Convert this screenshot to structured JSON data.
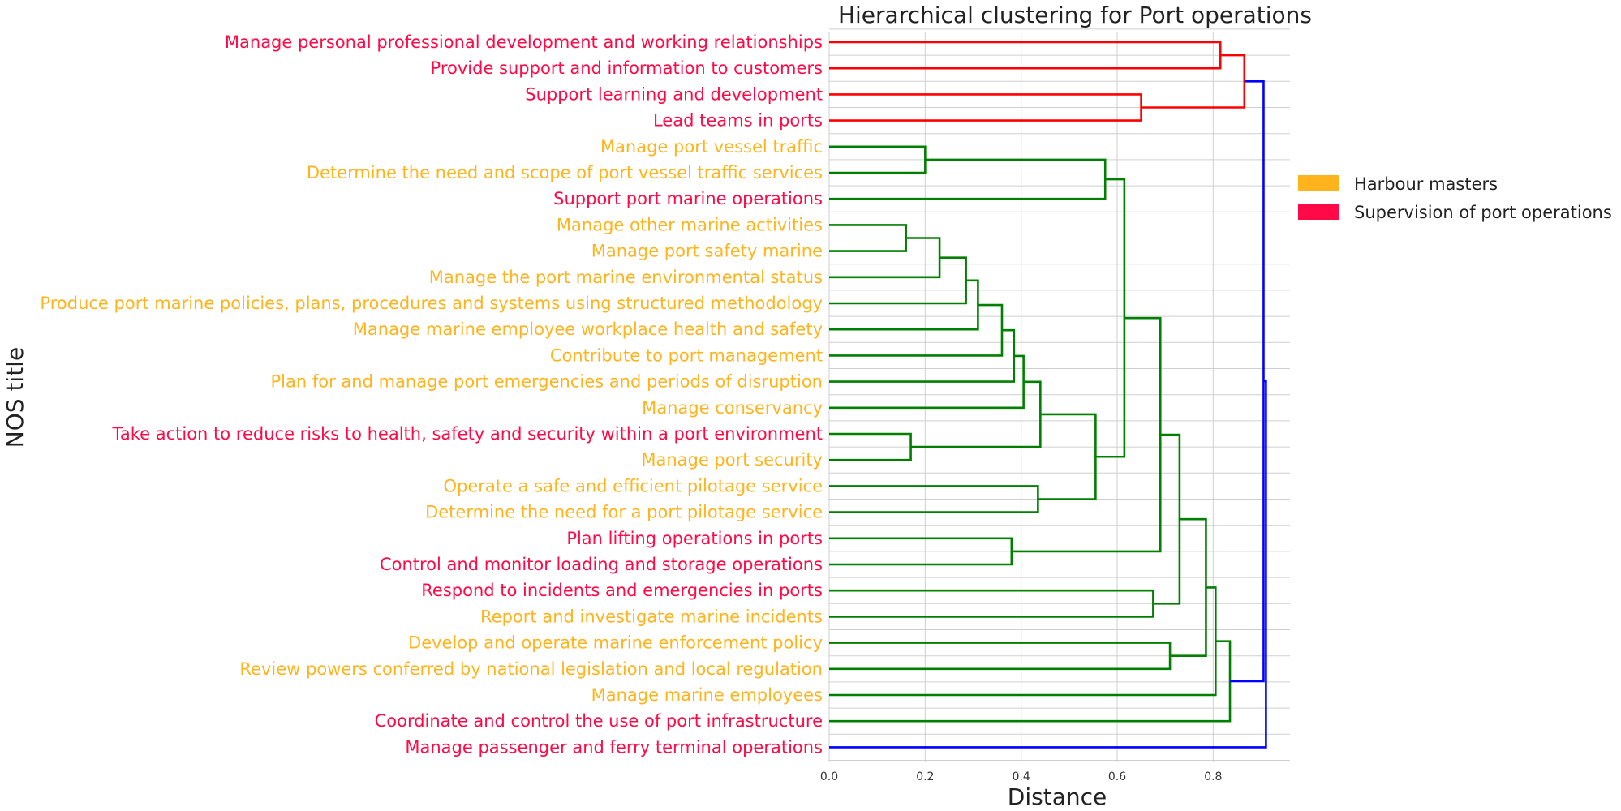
{
  "chart_data": {
    "type": "dendrogram",
    "title": "Hierarchical clustering for Port operations",
    "xlabel": "Distance",
    "ylabel": "NOS title",
    "xlim": [
      0,
      0.96
    ],
    "xticks": [
      "0.0",
      "0.2",
      "0.4",
      "0.6",
      "0.8"
    ],
    "xtick_values": [
      0,
      0.2,
      0.4,
      0.6,
      0.8
    ],
    "grid": true,
    "legend_placement": "right",
    "legend": [
      {
        "label": "Harbour masters",
        "color": "#FFB41E"
      },
      {
        "label": "Supervision of port operations",
        "color": "#FF0A46"
      }
    ],
    "group_colors": {
      "harbour": "#FFB41E",
      "supervision": "#FF0A46"
    },
    "link_colors": {
      "red": "#FF0000",
      "green": "#008000",
      "blue": "#0000FF"
    },
    "leaves": [
      {
        "label": "Manage personal professional development and working relationships",
        "group": "supervision"
      },
      {
        "label": "Provide support and information to customers",
        "group": "supervision"
      },
      {
        "label": "Support learning and development",
        "group": "supervision"
      },
      {
        "label": "Lead teams in ports",
        "group": "supervision"
      },
      {
        "label": "Manage port vessel traffic",
        "group": "harbour"
      },
      {
        "label": "Determine the need and scope of port vessel traffic services",
        "group": "harbour"
      },
      {
        "label": "Support port marine operations",
        "group": "supervision"
      },
      {
        "label": "Manage other marine activities",
        "group": "harbour"
      },
      {
        "label": "Manage port safety marine ",
        "group": "harbour"
      },
      {
        "label": "Manage the port marine environmental status",
        "group": "harbour"
      },
      {
        "label": "Produce port marine policies, plans, procedures and systems using structured methodology",
        "group": "harbour"
      },
      {
        "label": "Manage marine employee workplace health and safety",
        "group": "harbour"
      },
      {
        "label": "Contribute to port management",
        "group": "harbour"
      },
      {
        "label": "Plan for and manage port emergencies and periods of disruption",
        "group": "harbour"
      },
      {
        "label": "Manage conservancy",
        "group": "harbour"
      },
      {
        "label": "Take action to reduce risks to health, safety and security within a port environment",
        "group": "supervision"
      },
      {
        "label": "Manage port security",
        "group": "harbour"
      },
      {
        "label": "Operate a safe and efficient pilotage service",
        "group": "harbour"
      },
      {
        "label": "Determine the need for a port pilotage service",
        "group": "harbour"
      },
      {
        "label": "Plan lifting operations in ports ",
        "group": "supervision"
      },
      {
        "label": "Control and monitor loading and storage operations",
        "group": "supervision"
      },
      {
        "label": "Respond to incidents and emergencies in ports",
        "group": "supervision"
      },
      {
        "label": "Report and investigate marine incidents",
        "group": "harbour"
      },
      {
        "label": "Develop and operate marine enforcement policy",
        "group": "harbour"
      },
      {
        "label": "Review powers conferred by national legislation and local regulation",
        "group": "harbour"
      },
      {
        "label": "Manage marine employees",
        "group": "harbour"
      },
      {
        "label": "Coordinate and control the use of port infrastructure",
        "group": "supervision"
      },
      {
        "label": "Manage passenger and ferry terminal operations",
        "group": "supervision"
      }
    ],
    "merges": [
      {
        "id": "A",
        "a": "L0",
        "b": "L1",
        "distance": 0.815,
        "color": "red"
      },
      {
        "id": "B",
        "a": "L2",
        "b": "L3",
        "distance": 0.65,
        "color": "red"
      },
      {
        "id": "C",
        "a": "A",
        "b": "B",
        "distance": 0.865,
        "color": "red"
      },
      {
        "id": "D",
        "a": "L4",
        "b": "L5",
        "distance": 0.2,
        "color": "green"
      },
      {
        "id": "E",
        "a": "D",
        "b": "L6",
        "distance": 0.575,
        "color": "green"
      },
      {
        "id": "F",
        "a": "L7",
        "b": "L8",
        "distance": 0.16,
        "color": "green"
      },
      {
        "id": "G",
        "a": "F",
        "b": "L9",
        "distance": 0.23,
        "color": "green"
      },
      {
        "id": "H",
        "a": "G",
        "b": "L10",
        "distance": 0.285,
        "color": "green"
      },
      {
        "id": "I",
        "a": "H",
        "b": "L11",
        "distance": 0.31,
        "color": "green"
      },
      {
        "id": "J",
        "a": "I",
        "b": "L12",
        "distance": 0.36,
        "color": "green"
      },
      {
        "id": "K",
        "a": "J",
        "b": "L13",
        "distance": 0.385,
        "color": "green"
      },
      {
        "id": "L",
        "a": "K",
        "b": "L14",
        "distance": 0.405,
        "color": "green"
      },
      {
        "id": "M",
        "a": "L15",
        "b": "L16",
        "distance": 0.17,
        "color": "green"
      },
      {
        "id": "N",
        "a": "L",
        "b": "M",
        "distance": 0.44,
        "color": "green"
      },
      {
        "id": "O",
        "a": "L17",
        "b": "L18",
        "distance": 0.435,
        "color": "green"
      },
      {
        "id": "P",
        "a": "N",
        "b": "O",
        "distance": 0.555,
        "color": "green"
      },
      {
        "id": "Q",
        "a": "E",
        "b": "P",
        "distance": 0.615,
        "color": "green"
      },
      {
        "id": "R",
        "a": "L19",
        "b": "L20",
        "distance": 0.38,
        "color": "green"
      },
      {
        "id": "S",
        "a": "Q",
        "b": "R",
        "distance": 0.69,
        "color": "green"
      },
      {
        "id": "T",
        "a": "L21",
        "b": "L22",
        "distance": 0.675,
        "color": "green"
      },
      {
        "id": "U",
        "a": "S",
        "b": "T",
        "distance": 0.73,
        "color": "green"
      },
      {
        "id": "V",
        "a": "L23",
        "b": "L24",
        "distance": 0.71,
        "color": "green"
      },
      {
        "id": "W",
        "a": "U",
        "b": "V",
        "distance": 0.785,
        "color": "green"
      },
      {
        "id": "X",
        "a": "W",
        "b": "L25",
        "distance": 0.805,
        "color": "green"
      },
      {
        "id": "Y",
        "a": "X",
        "b": "L26",
        "distance": 0.835,
        "color": "green"
      },
      {
        "id": "Z",
        "a": "C",
        "b": "Y",
        "distance": 0.905,
        "color": "blue"
      },
      {
        "id": "ROOT",
        "a": "Z",
        "b": "L27",
        "distance": 0.91,
        "color": "blue"
      }
    ]
  }
}
